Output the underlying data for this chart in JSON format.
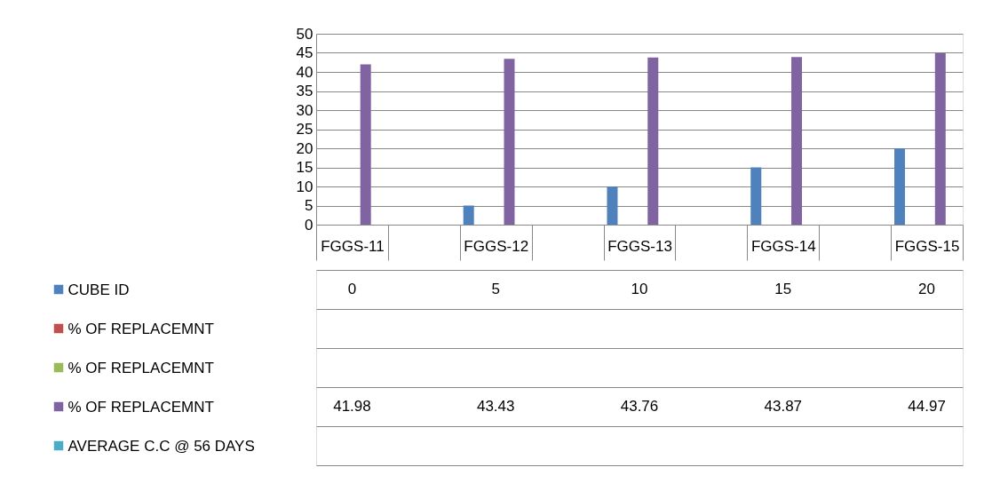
{
  "chart_data": {
    "type": "bar",
    "categories": [
      "FGGS-11",
      null,
      "FGGS-12",
      null,
      "FGGS-13",
      null,
      "FGGS-14",
      null,
      "FGGS-15"
    ],
    "series": [
      {
        "name": "CUBE ID",
        "color": "#4f81bd",
        "values": [
          0,
          null,
          5,
          null,
          10,
          null,
          15,
          null,
          20
        ]
      },
      {
        "name": "% OF REPLACEMNT",
        "color": "#c0504d",
        "values": [
          null,
          null,
          null,
          null,
          null,
          null,
          null,
          null,
          null
        ]
      },
      {
        "name": "% OF REPLACEMNT",
        "color": "#9bbb59",
        "values": [
          null,
          null,
          null,
          null,
          null,
          null,
          null,
          null,
          null
        ]
      },
      {
        "name": "% OF REPLACEMNT",
        "color": "#8064a2",
        "values": [
          41.98,
          null,
          43.43,
          null,
          43.76,
          null,
          43.87,
          null,
          44.97
        ]
      },
      {
        "name": "AVERAGE C.C @ 56 DAYS",
        "color": "#4bacc6",
        "values": [
          null,
          null,
          null,
          null,
          null,
          null,
          null,
          null,
          null
        ]
      }
    ],
    "ylim": [
      0,
      50
    ],
    "yticks": [
      0,
      5,
      10,
      15,
      20,
      25,
      30,
      35,
      40,
      45,
      50
    ],
    "grid": "y",
    "data_labels": true,
    "legend": "bottom"
  }
}
